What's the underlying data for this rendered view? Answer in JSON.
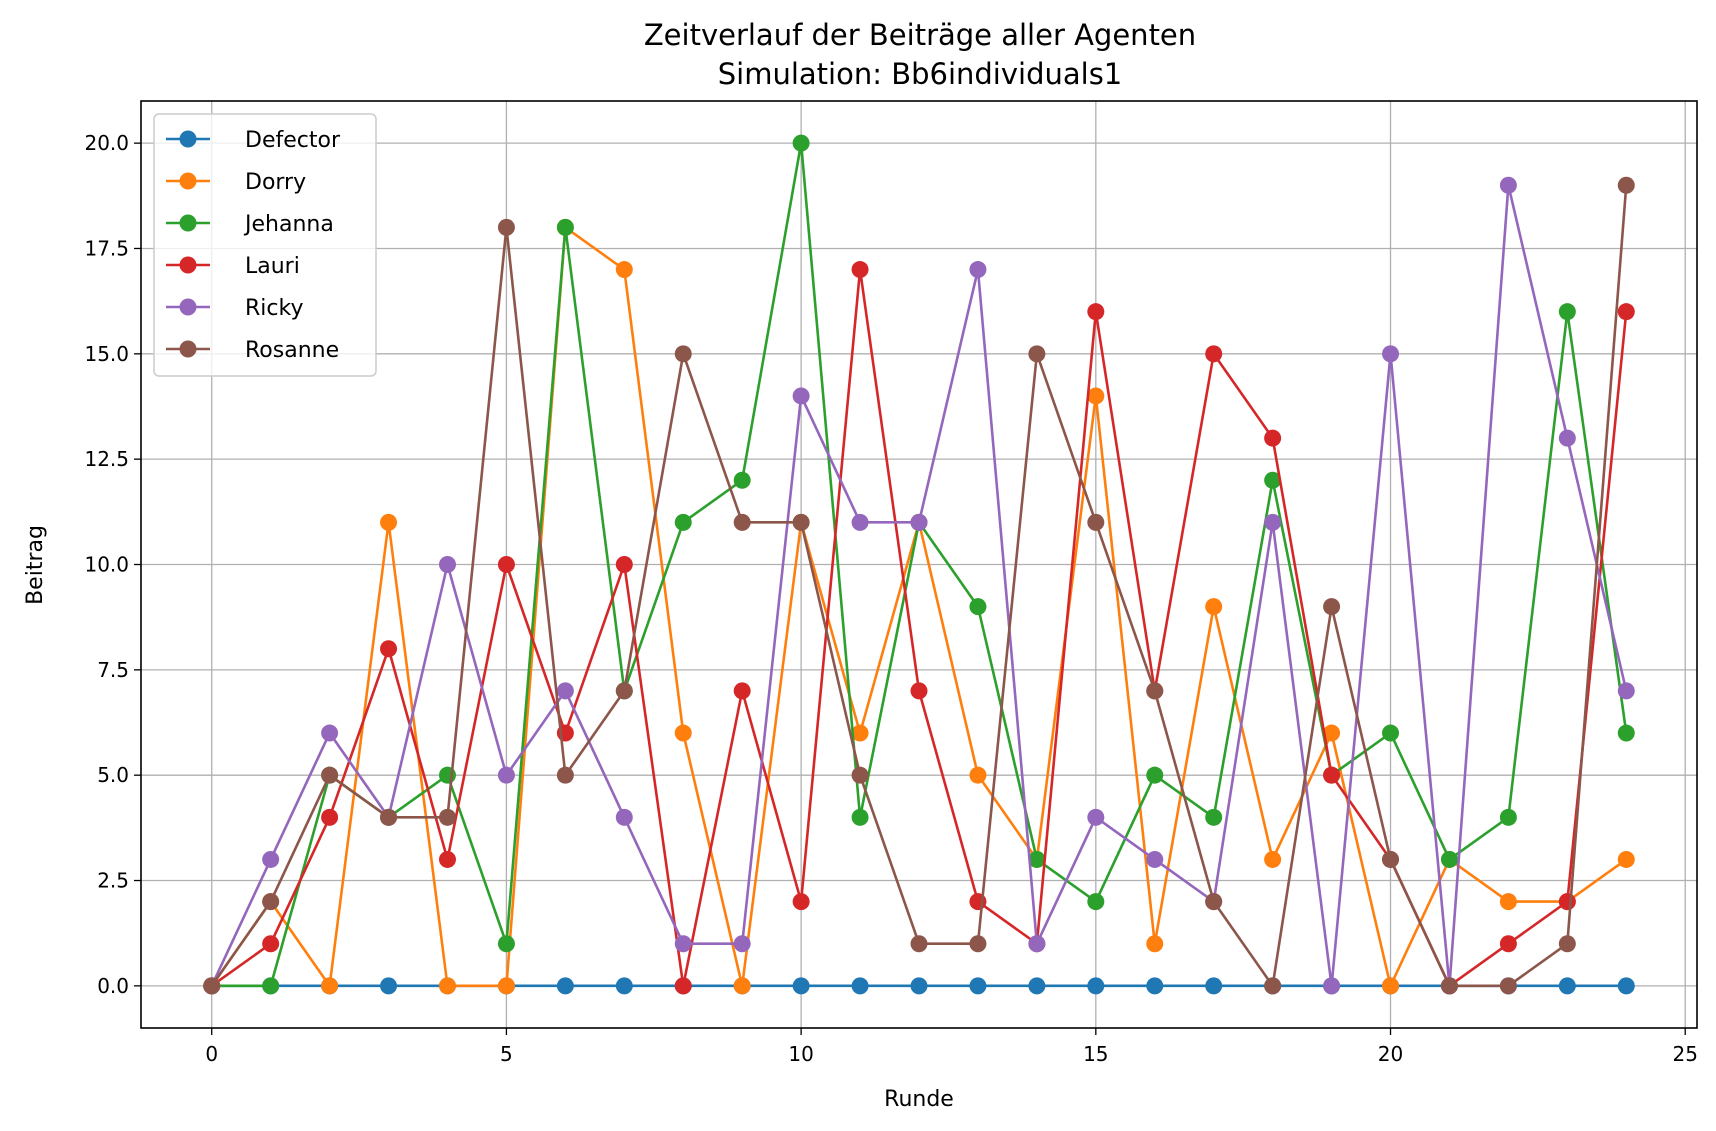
{
  "chart_data": {
    "type": "line",
    "title": "Zeitverlauf der Beiträge aller Agenten",
    "subtitle": "Simulation: Bb6individuals1",
    "xlabel": "Runde",
    "ylabel": "Beitrag",
    "xlim": [
      -1.2,
      25.2
    ],
    "ylim": [
      -1.0,
      21.0
    ],
    "xticks": [
      0,
      5,
      10,
      15,
      20,
      25
    ],
    "xtick_labels": [
      "0",
      "5",
      "10",
      "15",
      "20",
      "25"
    ],
    "yticks": [
      0,
      2.5,
      5,
      7.5,
      10,
      12.5,
      15,
      17.5,
      20
    ],
    "ytick_labels": [
      "0.0",
      "2.5",
      "5.0",
      "7.5",
      "10.0",
      "12.5",
      "15.0",
      "17.5",
      "20.0"
    ],
    "grid": true,
    "legend_position": "top-left",
    "x": [
      0,
      1,
      2,
      3,
      4,
      5,
      6,
      7,
      8,
      9,
      10,
      11,
      12,
      13,
      14,
      15,
      16,
      17,
      18,
      19,
      20,
      21,
      22,
      23,
      24
    ],
    "series": [
      {
        "name": "Defector",
        "color": "#1f77b4",
        "values": [
          0,
          0,
          0,
          0,
          0,
          0,
          0,
          0,
          0,
          0,
          0,
          0,
          0,
          0,
          0,
          0,
          0,
          0,
          0,
          0,
          0,
          0,
          0,
          0,
          0
        ]
      },
      {
        "name": "Dorry",
        "color": "#ff7f0e",
        "values": [
          0,
          2,
          0,
          11,
          0,
          0,
          18,
          17,
          6,
          0,
          11,
          6,
          11,
          5,
          3,
          14,
          1,
          9,
          3,
          6,
          0,
          3,
          2,
          2,
          3
        ]
      },
      {
        "name": "Jehanna",
        "color": "#2ca02c",
        "values": [
          0,
          0,
          5,
          4,
          5,
          1,
          18,
          7,
          11,
          12,
          20,
          4,
          11,
          9,
          3,
          2,
          5,
          4,
          12,
          5,
          6,
          3,
          4,
          16,
          6
        ]
      },
      {
        "name": "Lauri",
        "color": "#d62728",
        "values": [
          0,
          1,
          4,
          8,
          3,
          10,
          6,
          10,
          0,
          7,
          2,
          17,
          7,
          2,
          1,
          16,
          7,
          15,
          13,
          5,
          3,
          0,
          1,
          2,
          16
        ]
      },
      {
        "name": "Ricky",
        "color": "#9467bd",
        "values": [
          0,
          3,
          6,
          4,
          10,
          5,
          7,
          4,
          1,
          1,
          14,
          11,
          11,
          17,
          1,
          4,
          3,
          2,
          11,
          0,
          15,
          0,
          19,
          13,
          7
        ]
      },
      {
        "name": "Rosanne",
        "color": "#8c564b",
        "values": [
          0,
          2,
          5,
          4,
          4,
          18,
          5,
          7,
          15,
          11,
          11,
          5,
          1,
          1,
          15,
          11,
          7,
          2,
          0,
          9,
          3,
          0,
          0,
          1,
          19
        ]
      }
    ]
  }
}
